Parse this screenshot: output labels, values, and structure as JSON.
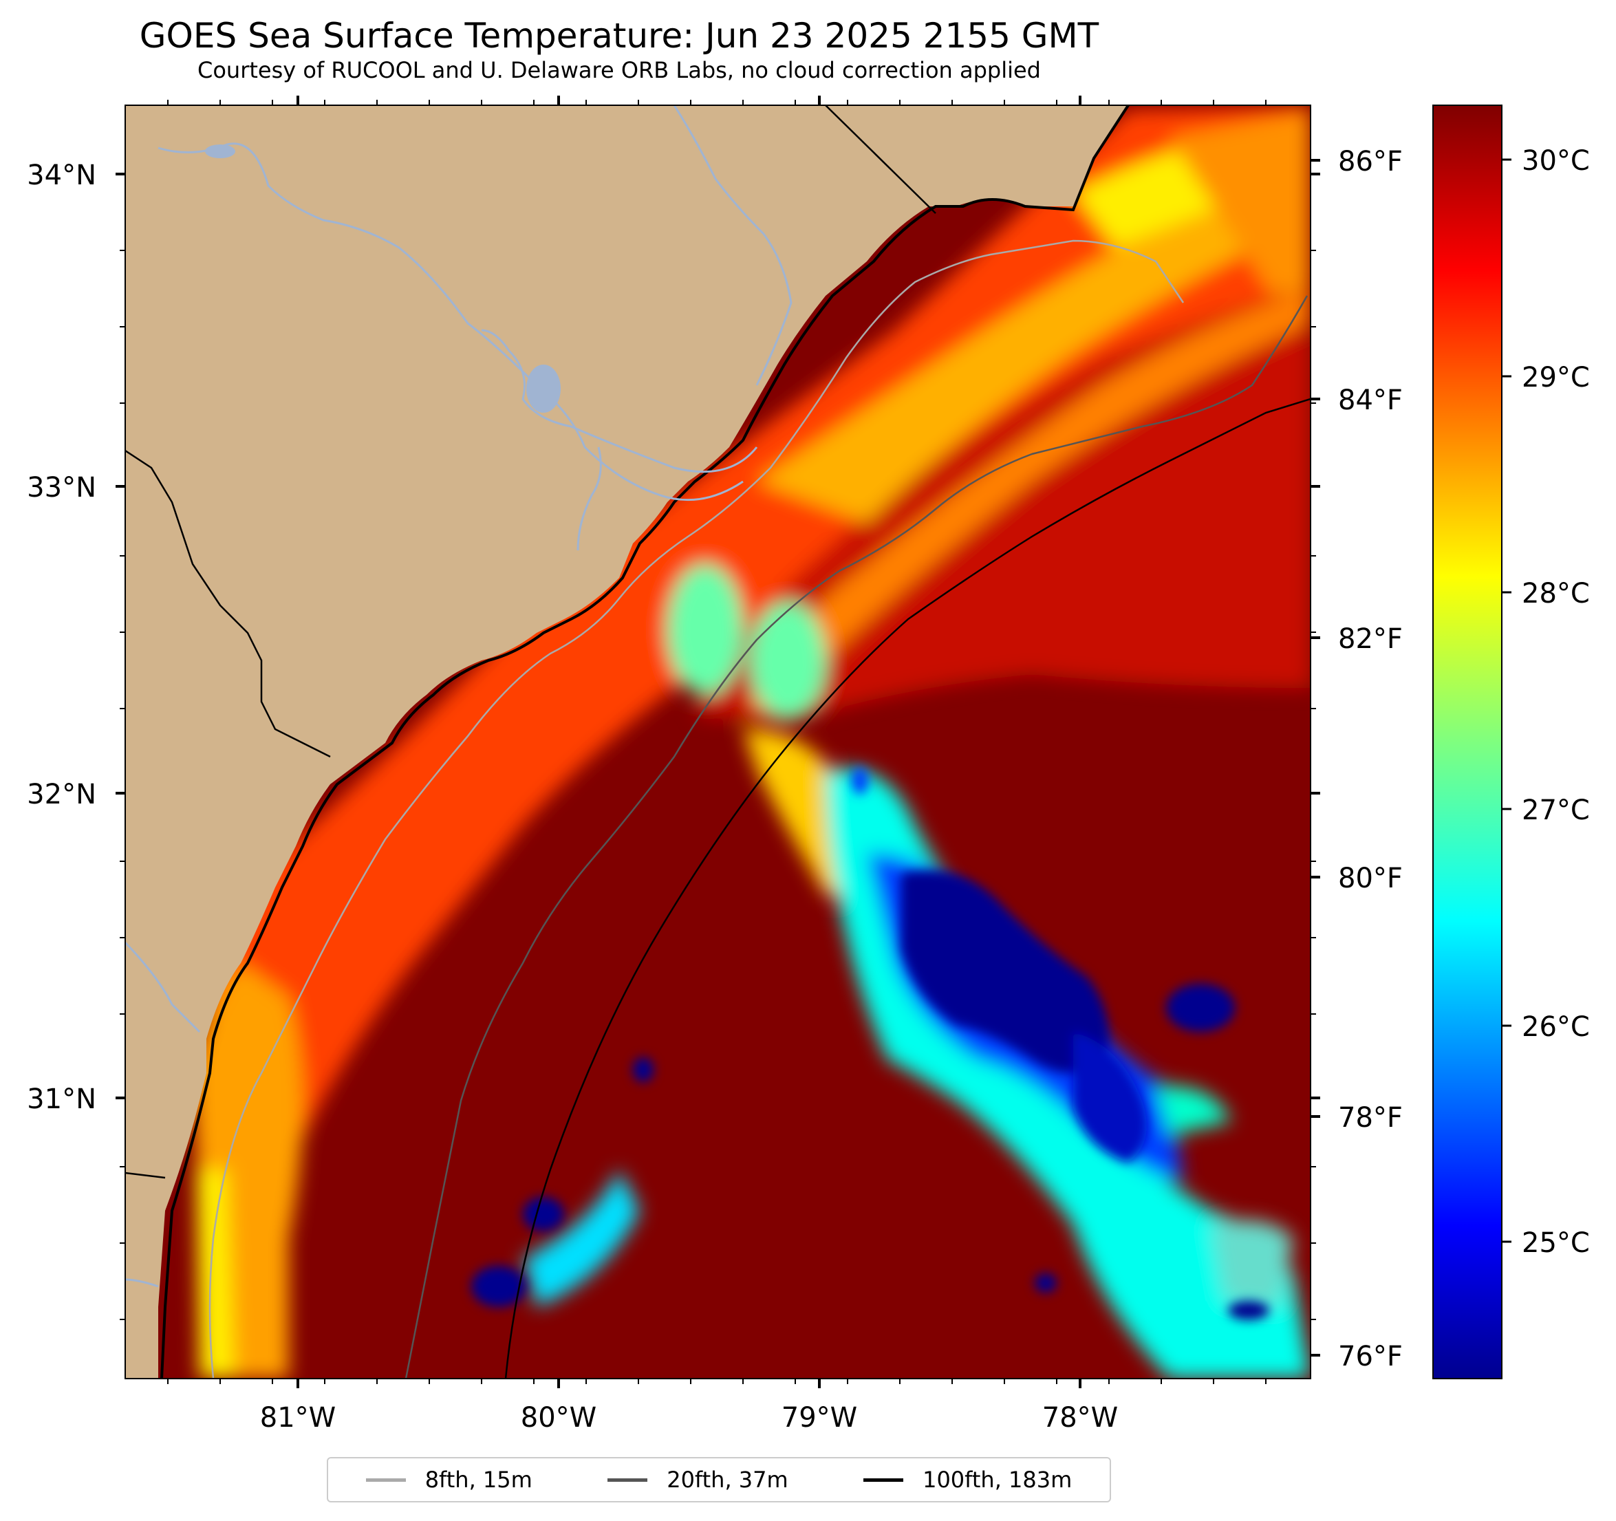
{
  "title": "GOES Sea Surface Temperature: Jun 23 2025 2155 GMT",
  "subtitle": "Courtesy of RUCOOL and U. Delaware ORB Labs, no cloud correction applied",
  "map": {
    "land_color": "#d2b48c",
    "water_line_color": "#a0b4d2",
    "lat_labels": [
      "34°N",
      "33°N",
      "32°N",
      "31°N"
    ],
    "lon_labels": [
      "81°W",
      "80°W",
      "79°W",
      "78°W"
    ],
    "fahrenheit_labels": [
      "86°F",
      "84°F",
      "82°F",
      "80°F",
      "78°F",
      "76°F"
    ],
    "celsius_labels": [
      "30°C",
      "29°C",
      "28°C",
      "27°C",
      "26°C",
      "25°C"
    ],
    "colormap": "jet"
  },
  "legend": [
    {
      "label": "8fth, 15m",
      "color": "#aaaaaa"
    },
    {
      "label": "20fth, 37m",
      "color": "#555555"
    },
    {
      "label": "100fth, 183m",
      "color": "#000000"
    }
  ]
}
